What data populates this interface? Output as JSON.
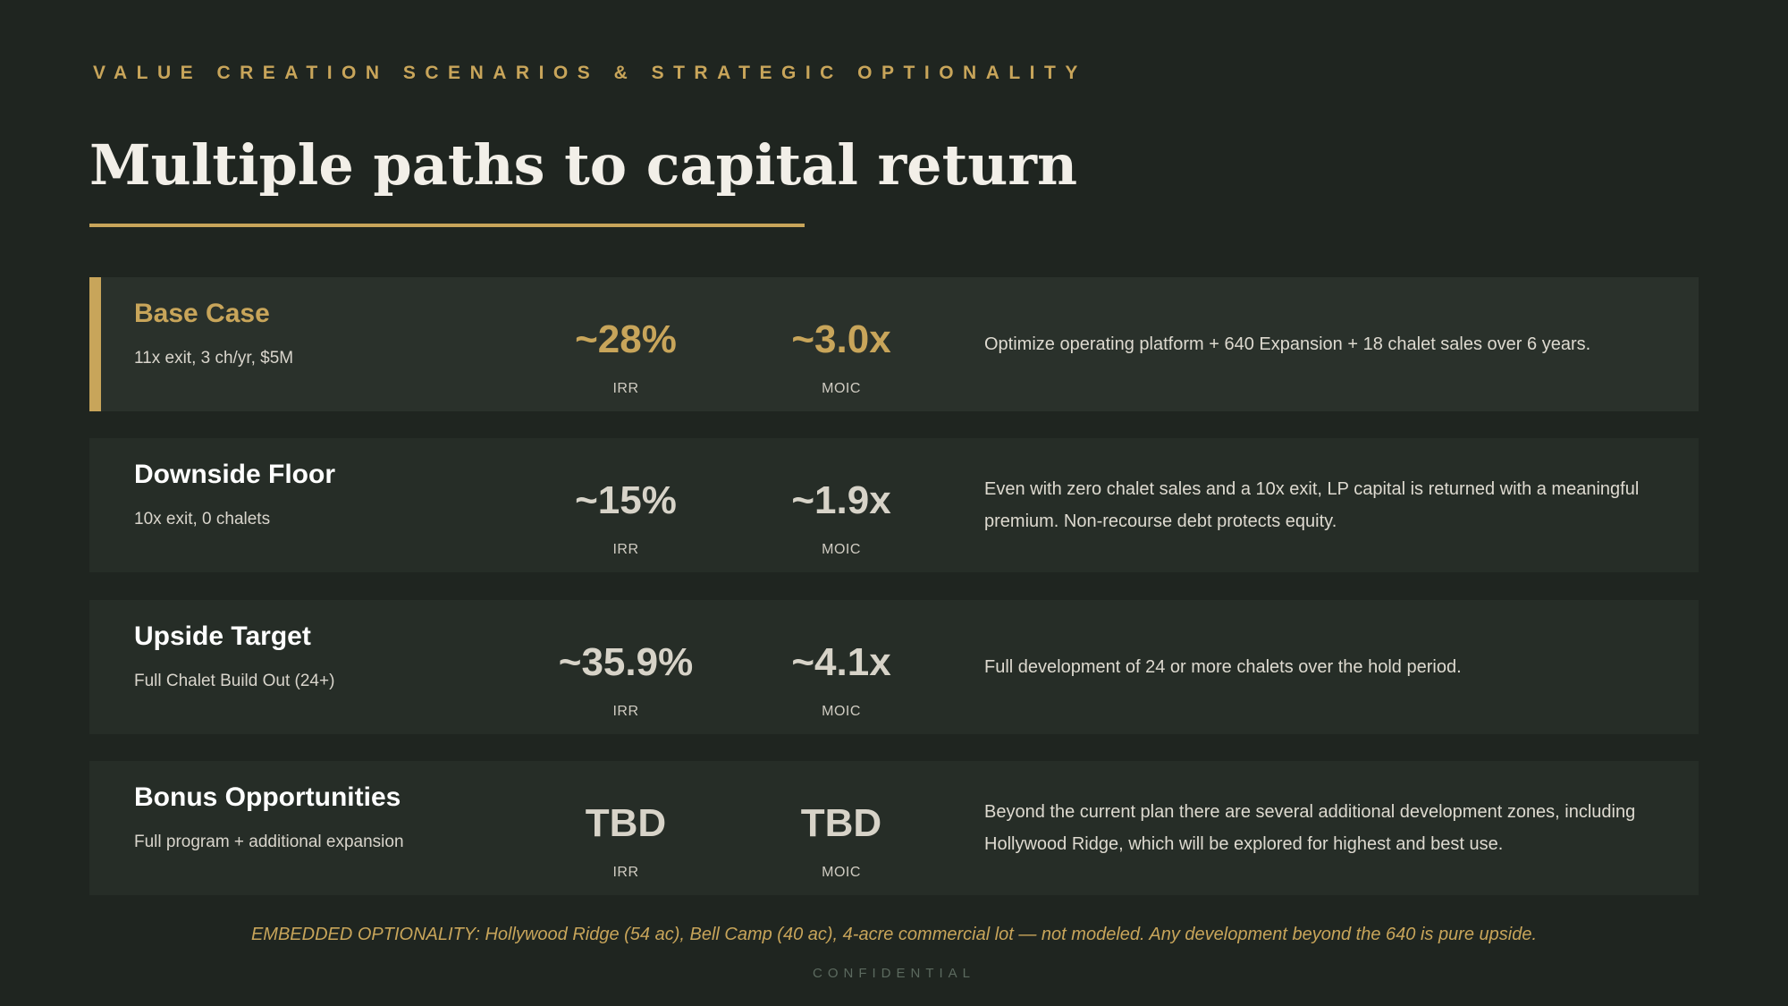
{
  "header": {
    "eyebrow": "VALUE CREATION SCENARIOS & STRATEGIC OPTIONALITY",
    "title": "Multiple paths to capital return"
  },
  "scenarios": [
    {
      "name": "Base Case",
      "subtitle": "11x exit, 3 ch/yr, $5M",
      "irr": "~28%",
      "irr_label": "IRR",
      "moic": "~3.0x",
      "moic_label": "MOIC",
      "description": "Optimize operating platform + 640 Expansion + 18 chalet sales over 6 years."
    },
    {
      "name": "Downside Floor",
      "subtitle": "10x exit, 0 chalets",
      "irr": "~15%",
      "irr_label": "IRR",
      "moic": "~1.9x",
      "moic_label": "MOIC",
      "description": "Even with zero chalet sales and a 10x exit, LP capital is returned with a meaningful premium. Non-recourse debt protects equity."
    },
    {
      "name": "Upside Target",
      "subtitle": "Full Chalet Build Out (24+)",
      "irr": "~35.9%",
      "irr_label": "IRR",
      "moic": "~4.1x",
      "moic_label": "MOIC",
      "description": "Full development of 24 or more chalets over the hold period."
    },
    {
      "name": "Bonus Opportunities",
      "subtitle": "Full program + additional expansion",
      "irr": "TBD",
      "irr_label": "IRR",
      "moic": "TBD",
      "moic_label": "MOIC",
      "description": "Beyond the current plan there are several additional development zones, including Hollywood Ridge, which will be explored for highest and best use."
    }
  ],
  "footnote": "EMBEDDED OPTIONALITY: Hollywood Ridge (54 ac), Bell Camp (40 ac), 4-acre commercial lot — not modeled. Any development beyond the 640 is pure upside.",
  "confidential": "CONFIDENTIAL",
  "colors": {
    "background": "#1f2520",
    "accent": "#c8a55a",
    "card": "#2a312b"
  }
}
